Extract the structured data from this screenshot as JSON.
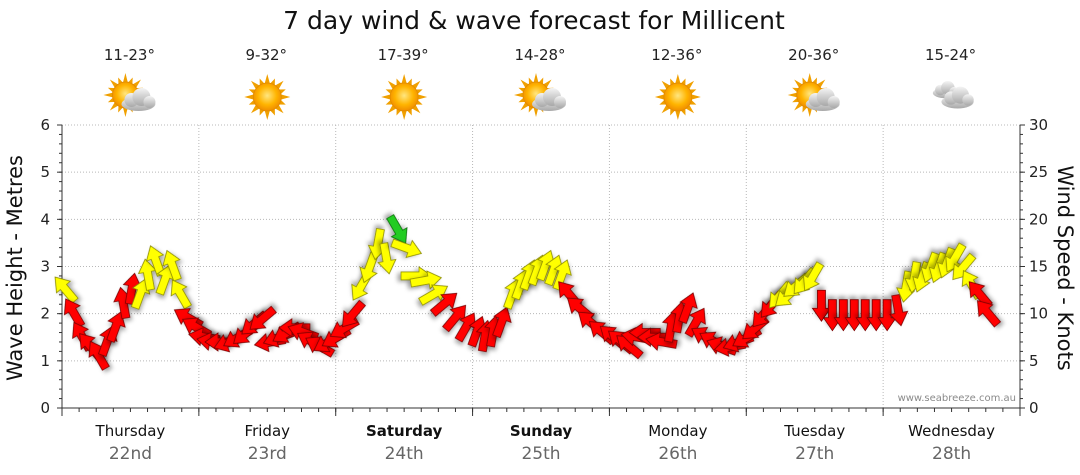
{
  "chart_data": {
    "type": "line",
    "title": "7 day wind & wave forecast for Millicent",
    "ylabel_left": "Wave Height - Metres",
    "ylabel_right": "Wind Speed - Knots",
    "ylim_left": [
      0,
      6
    ],
    "ylim_right": [
      0,
      30
    ],
    "yticks_left": [
      "0",
      "1",
      "2",
      "3",
      "4",
      "5",
      "6"
    ],
    "yticks_right": [
      "0",
      "5",
      "10",
      "15",
      "20",
      "25",
      "30"
    ],
    "grid": true,
    "credit": "www.seabreeze.com.au",
    "days": [
      {
        "name": "Thursday",
        "date": "22nd",
        "temp": "11-23°",
        "weather": "partly-cloudy",
        "bold": false
      },
      {
        "name": "Friday",
        "date": "23rd",
        "temp": "9-32°",
        "weather": "sunny",
        "bold": false
      },
      {
        "name": "Saturday",
        "date": "24th",
        "temp": "17-39°",
        "weather": "sunny",
        "bold": true
      },
      {
        "name": "Sunday",
        "date": "25th",
        "temp": "14-28°",
        "weather": "partly-cloudy",
        "bold": true
      },
      {
        "name": "Monday",
        "date": "26th",
        "temp": "12-36°",
        "weather": "sunny",
        "bold": false
      },
      {
        "name": "Tuesday",
        "date": "27th",
        "temp": "20-36°",
        "weather": "partly-cloudy",
        "bold": false
      },
      {
        "name": "Wednesday",
        "date": "28th",
        "temp": "15-24°",
        "weather": "cloudy",
        "bold": false
      }
    ],
    "arrow_colors": {
      "light": "#ffff00",
      "moderate": "#ff0000",
      "strong": "#22cc22"
    },
    "wind_arrows": [
      {
        "day": 0.0,
        "wind": 12.5,
        "dir": 320,
        "color": "light"
      },
      {
        "day": 0.06,
        "wind": 10.0,
        "dir": 330,
        "color": "moderate"
      },
      {
        "day": 0.12,
        "wind": 7.5,
        "dir": 330,
        "color": "moderate"
      },
      {
        "day": 0.18,
        "wind": 6.5,
        "dir": 320,
        "color": "moderate"
      },
      {
        "day": 0.24,
        "wind": 5.5,
        "dir": 330,
        "color": "moderate"
      },
      {
        "day": 0.3,
        "wind": 7.0,
        "dir": 20,
        "color": "moderate"
      },
      {
        "day": 0.36,
        "wind": 8.5,
        "dir": 20,
        "color": "moderate"
      },
      {
        "day": 0.42,
        "wind": 11.0,
        "dir": 350,
        "color": "moderate"
      },
      {
        "day": 0.48,
        "wind": 12.5,
        "dir": 10,
        "color": "moderate"
      },
      {
        "day": 0.54,
        "wind": 12.0,
        "dir": 20,
        "color": "yellow"
      },
      {
        "day": 0.6,
        "wind": 14.0,
        "dir": 350,
        "color": "light"
      },
      {
        "day": 0.66,
        "wind": 15.5,
        "dir": 340,
        "color": "light"
      },
      {
        "day": 0.72,
        "wind": 13.5,
        "dir": 20,
        "color": "light"
      },
      {
        "day": 0.78,
        "wind": 15.0,
        "dir": 340,
        "color": "light"
      },
      {
        "day": 0.84,
        "wind": 12.0,
        "dir": 330,
        "color": "light"
      },
      {
        "day": 0.9,
        "wind": 9.5,
        "dir": 300,
        "color": "moderate"
      },
      {
        "day": 0.96,
        "wind": 8.5,
        "dir": 300,
        "color": "moderate"
      },
      {
        "day": 1.02,
        "wind": 7.5,
        "dir": 280,
        "color": "moderate"
      },
      {
        "day": 1.08,
        "wind": 7.0,
        "dir": 280,
        "color": "moderate"
      },
      {
        "day": 1.14,
        "wind": 7.0,
        "dir": 270,
        "color": "moderate"
      },
      {
        "day": 1.2,
        "wind": 7.0,
        "dir": 250,
        "color": "moderate"
      },
      {
        "day": 1.26,
        "wind": 7.5,
        "dir": 240,
        "color": "moderate"
      },
      {
        "day": 1.32,
        "wind": 8.0,
        "dir": 230,
        "color": "moderate"
      },
      {
        "day": 1.38,
        "wind": 9.0,
        "dir": 230,
        "color": "moderate"
      },
      {
        "day": 1.44,
        "wind": 9.5,
        "dir": 230,
        "color": "moderate"
      },
      {
        "day": 1.5,
        "wind": 7.0,
        "dir": 260,
        "color": "moderate"
      },
      {
        "day": 1.56,
        "wind": 7.5,
        "dir": 250,
        "color": "moderate"
      },
      {
        "day": 1.62,
        "wind": 8.0,
        "dir": 240,
        "color": "moderate"
      },
      {
        "day": 1.68,
        "wind": 8.5,
        "dir": 270,
        "color": "moderate"
      },
      {
        "day": 1.74,
        "wind": 8.0,
        "dir": 290,
        "color": "moderate"
      },
      {
        "day": 1.8,
        "wind": 7.0,
        "dir": 300,
        "color": "moderate"
      },
      {
        "day": 1.86,
        "wind": 6.5,
        "dir": 300,
        "color": "moderate"
      },
      {
        "day": 1.92,
        "wind": 7.0,
        "dir": 240,
        "color": "moderate"
      },
      {
        "day": 1.98,
        "wind": 7.5,
        "dir": 240,
        "color": "moderate"
      },
      {
        "day": 2.04,
        "wind": 8.5,
        "dir": 240,
        "color": "moderate"
      },
      {
        "day": 2.1,
        "wind": 10.0,
        "dir": 220,
        "color": "moderate"
      },
      {
        "day": 2.16,
        "wind": 13.0,
        "dir": 210,
        "color": "light"
      },
      {
        "day": 2.22,
        "wind": 15.0,
        "dir": 200,
        "color": "light"
      },
      {
        "day": 2.28,
        "wind": 17.5,
        "dir": 190,
        "color": "light"
      },
      {
        "day": 2.34,
        "wind": 16.0,
        "dir": 170,
        "color": "light"
      },
      {
        "day": 2.42,
        "wind": 19.0,
        "dir": 150,
        "color": "strong"
      },
      {
        "day": 2.48,
        "wind": 17.0,
        "dir": 110,
        "color": "light"
      },
      {
        "day": 2.55,
        "wind": 14.0,
        "dir": 90,
        "color": "light"
      },
      {
        "day": 2.62,
        "wind": 13.5,
        "dir": 80,
        "color": "light"
      },
      {
        "day": 2.68,
        "wind": 12.0,
        "dir": 60,
        "color": "light"
      },
      {
        "day": 2.76,
        "wind": 11.0,
        "dir": 50,
        "color": "moderate"
      },
      {
        "day": 2.84,
        "wind": 9.5,
        "dir": 40,
        "color": "moderate"
      },
      {
        "day": 2.92,
        "wind": 8.5,
        "dir": 30,
        "color": "moderate"
      },
      {
        "day": 3.0,
        "wind": 8.0,
        "dir": 20,
        "color": "moderate"
      },
      {
        "day": 3.06,
        "wind": 7.5,
        "dir": 10,
        "color": "moderate"
      },
      {
        "day": 3.12,
        "wind": 8.0,
        "dir": 10,
        "color": "moderate"
      },
      {
        "day": 3.18,
        "wind": 9.0,
        "dir": 20,
        "color": "moderate"
      },
      {
        "day": 3.26,
        "wind": 12.0,
        "dir": 20,
        "color": "light"
      },
      {
        "day": 3.32,
        "wind": 13.0,
        "dir": 20,
        "color": "light"
      },
      {
        "day": 3.38,
        "wind": 14.0,
        "dir": 20,
        "color": "light"
      },
      {
        "day": 3.44,
        "wind": 14.5,
        "dir": 20,
        "color": "light"
      },
      {
        "day": 3.5,
        "wind": 15.0,
        "dir": 20,
        "color": "light"
      },
      {
        "day": 3.56,
        "wind": 14.5,
        "dir": 20,
        "color": "light"
      },
      {
        "day": 3.62,
        "wind": 14.0,
        "dir": 20,
        "color": "light"
      },
      {
        "day": 3.68,
        "wind": 12.0,
        "dir": 320,
        "color": "moderate"
      },
      {
        "day": 3.76,
        "wind": 10.5,
        "dir": 310,
        "color": "moderate"
      },
      {
        "day": 3.84,
        "wind": 9.0,
        "dir": 310,
        "color": "moderate"
      },
      {
        "day": 3.92,
        "wind": 8.0,
        "dir": 310,
        "color": "moderate"
      },
      {
        "day": 4.0,
        "wind": 7.5,
        "dir": 310,
        "color": "moderate"
      },
      {
        "day": 4.06,
        "wind": 7.0,
        "dir": 310,
        "color": "moderate"
      },
      {
        "day": 4.12,
        "wind": 6.5,
        "dir": 310,
        "color": "moderate"
      },
      {
        "day": 4.18,
        "wind": 7.5,
        "dir": 280,
        "color": "moderate"
      },
      {
        "day": 4.24,
        "wind": 8.0,
        "dir": 270,
        "color": "moderate"
      },
      {
        "day": 4.3,
        "wind": 7.5,
        "dir": 270,
        "color": "moderate"
      },
      {
        "day": 4.36,
        "wind": 7.0,
        "dir": 280,
        "color": "moderate"
      },
      {
        "day": 4.42,
        "wind": 8.5,
        "dir": 10,
        "color": "moderate"
      },
      {
        "day": 4.48,
        "wind": 9.5,
        "dir": 10,
        "color": "moderate"
      },
      {
        "day": 4.54,
        "wind": 10.5,
        "dir": 20,
        "color": "moderate"
      },
      {
        "day": 4.6,
        "wind": 9.0,
        "dir": 30,
        "color": "moderate"
      },
      {
        "day": 4.68,
        "wind": 7.5,
        "dir": 300,
        "color": "moderate"
      },
      {
        "day": 4.74,
        "wind": 7.0,
        "dir": 300,
        "color": "moderate"
      },
      {
        "day": 4.8,
        "wind": 6.5,
        "dir": 290,
        "color": "moderate"
      },
      {
        "day": 4.86,
        "wind": 6.5,
        "dir": 260,
        "color": "moderate"
      },
      {
        "day": 4.92,
        "wind": 7.0,
        "dir": 250,
        "color": "moderate"
      },
      {
        "day": 4.98,
        "wind": 7.5,
        "dir": 240,
        "color": "moderate"
      },
      {
        "day": 5.04,
        "wind": 8.5,
        "dir": 230,
        "color": "moderate"
      },
      {
        "day": 5.1,
        "wind": 10.0,
        "dir": 220,
        "color": "moderate"
      },
      {
        "day": 5.16,
        "wind": 11.0,
        "dir": 220,
        "color": "moderate"
      },
      {
        "day": 5.22,
        "wind": 12.0,
        "dir": 220,
        "color": "light"
      },
      {
        "day": 5.28,
        "wind": 12.0,
        "dir": 230,
        "color": "light"
      },
      {
        "day": 5.34,
        "wind": 13.0,
        "dir": 230,
        "color": "light"
      },
      {
        "day": 5.4,
        "wind": 13.5,
        "dir": 220,
        "color": "light"
      },
      {
        "day": 5.46,
        "wind": 14.0,
        "dir": 210,
        "color": "light"
      },
      {
        "day": 5.52,
        "wind": 11.0,
        "dir": 180,
        "color": "moderate"
      },
      {
        "day": 5.6,
        "wind": 10.0,
        "dir": 180,
        "color": "moderate"
      },
      {
        "day": 5.68,
        "wind": 10.0,
        "dir": 180,
        "color": "moderate"
      },
      {
        "day": 5.76,
        "wind": 10.0,
        "dir": 180,
        "color": "moderate"
      },
      {
        "day": 5.84,
        "wind": 10.0,
        "dir": 180,
        "color": "moderate"
      },
      {
        "day": 5.92,
        "wind": 10.0,
        "dir": 180,
        "color": "moderate"
      },
      {
        "day": 6.0,
        "wind": 10.0,
        "dir": 180,
        "color": "moderate"
      },
      {
        "day": 6.08,
        "wind": 10.5,
        "dir": 170,
        "color": "moderate"
      },
      {
        "day": 6.14,
        "wind": 13.0,
        "dir": 190,
        "color": "light"
      },
      {
        "day": 6.2,
        "wind": 14.0,
        "dir": 190,
        "color": "light"
      },
      {
        "day": 6.26,
        "wind": 14.0,
        "dir": 200,
        "color": "light"
      },
      {
        "day": 6.32,
        "wind": 15.0,
        "dir": 200,
        "color": "light"
      },
      {
        "day": 6.38,
        "wind": 15.0,
        "dir": 200,
        "color": "light"
      },
      {
        "day": 6.44,
        "wind": 15.5,
        "dir": 200,
        "color": "light"
      },
      {
        "day": 6.5,
        "wind": 16.0,
        "dir": 210,
        "color": "light"
      },
      {
        "day": 6.56,
        "wind": 15.0,
        "dir": 220,
        "color": "light"
      },
      {
        "day": 6.62,
        "wind": 13.0,
        "dir": 330,
        "color": "light"
      },
      {
        "day": 6.68,
        "wind": 12.0,
        "dir": 320,
        "color": "moderate"
      },
      {
        "day": 6.74,
        "wind": 10.0,
        "dir": 320,
        "color": "moderate"
      }
    ]
  }
}
